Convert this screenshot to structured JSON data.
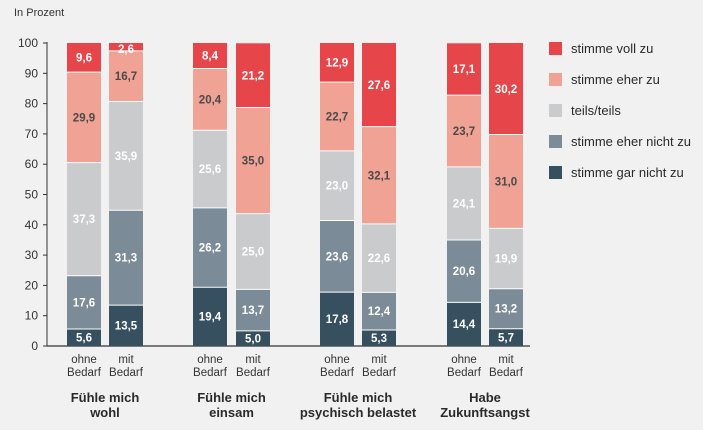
{
  "chart_data": {
    "type": "stacked-bar",
    "unit_label": "In Prozent",
    "ylim": [
      0,
      100
    ],
    "yticks": [
      0,
      10,
      20,
      30,
      40,
      50,
      60,
      70,
      80,
      90,
      100
    ],
    "series": [
      {
        "name": "stimme gar nicht zu",
        "color": "#37505f",
        "label_color": "#ffffff"
      },
      {
        "name": "stimme eher nicht zu",
        "color": "#7b8b97",
        "label_color": "#ffffff"
      },
      {
        "name": "teils/teils",
        "color": "#c9cbcd",
        "label_color": "#ffffff"
      },
      {
        "name": "stimme eher zu",
        "color": "#f0a294",
        "label_color": "#4a4a4a"
      },
      {
        "name": "stimme voll zu",
        "color": "#e6454a",
        "label_color": "#ffffff"
      }
    ],
    "groups": [
      {
        "label_lines": [
          "Fühle mich",
          "wohl"
        ],
        "bars": [
          {
            "label_lines": [
              "ohne",
              "Bedarf"
            ],
            "values": [
              5.6,
              17.6,
              37.3,
              29.9,
              9.6
            ],
            "labels": [
              "5,6",
              "17,6",
              "37,3",
              "29,9",
              "9,6"
            ]
          },
          {
            "label_lines": [
              "mit",
              "Bedarf"
            ],
            "values": [
              13.5,
              31.3,
              35.9,
              16.7,
              2.6
            ],
            "labels": [
              "13,5",
              "31,3",
              "35,9",
              "16,7",
              "2,6"
            ]
          }
        ]
      },
      {
        "label_lines": [
          "Fühle mich",
          "einsam"
        ],
        "bars": [
          {
            "label_lines": [
              "ohne",
              "Bedarf"
            ],
            "values": [
              19.4,
              26.2,
              25.6,
              20.4,
              8.4
            ],
            "labels": [
              "19,4",
              "26,2",
              "25,6",
              "20,4",
              "8,4"
            ]
          },
          {
            "label_lines": [
              "mit",
              "Bedarf"
            ],
            "values": [
              5.0,
              13.7,
              25.0,
              35.0,
              21.2
            ],
            "labels": [
              "5,0",
              "13,7",
              "25,0",
              "35,0",
              "21,2"
            ]
          }
        ]
      },
      {
        "label_lines": [
          "Fühle mich",
          "psychisch belastet"
        ],
        "bars": [
          {
            "label_lines": [
              "ohne",
              "Bedarf"
            ],
            "values": [
              17.8,
              23.6,
              23.0,
              22.7,
              12.9
            ],
            "labels": [
              "17,8",
              "23,6",
              "23,0",
              "22,7",
              "12,9"
            ]
          },
          {
            "label_lines": [
              "mit",
              "Bedarf"
            ],
            "values": [
              5.3,
              12.4,
              22.6,
              32.1,
              27.6
            ],
            "labels": [
              "5,3",
              "12,4",
              "22,6",
              "32,1",
              "27,6"
            ]
          }
        ]
      },
      {
        "label_lines": [
          "Habe",
          "Zukunftsangst"
        ],
        "bars": [
          {
            "label_lines": [
              "ohne",
              "Bedarf"
            ],
            "values": [
              14.4,
              20.6,
              24.1,
              23.7,
              17.1
            ],
            "labels": [
              "14,4",
              "20,6",
              "24,1",
              "23,7",
              "17,1"
            ]
          },
          {
            "label_lines": [
              "mit",
              "Bedarf"
            ],
            "values": [
              5.7,
              13.2,
              19.9,
              31.0,
              30.2
            ],
            "labels": [
              "5,7",
              "13,2",
              "19,9",
              "31,0",
              "30,2"
            ]
          }
        ]
      }
    ],
    "legend_order": [
      4,
      3,
      2,
      1,
      0
    ]
  }
}
